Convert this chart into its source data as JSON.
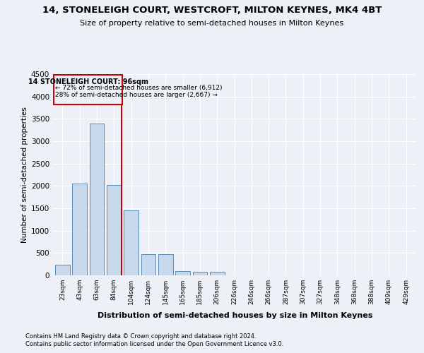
{
  "title1": "14, STONELEIGH COURT, WESTCROFT, MILTON KEYNES, MK4 4BT",
  "title2": "Size of property relative to semi-detached houses in Milton Keynes",
  "xlabel": "Distribution of semi-detached houses by size in Milton Keynes",
  "ylabel": "Number of semi-detached properties",
  "footer1": "Contains HM Land Registry data © Crown copyright and database right 2024.",
  "footer2": "Contains public sector information licensed under the Open Government Licence v3.0.",
  "annotation_title": "14 STONELEIGH COURT: 96sqm",
  "annotation_line1": "← 72% of semi-detached houses are smaller (6,912)",
  "annotation_line2": "28% of semi-detached houses are larger (2,667) →",
  "bar_color": "#c8d8ec",
  "bar_edge_color": "#5b8db8",
  "vline_color": "#cc0000",
  "categories": [
    "23sqm",
    "43sqm",
    "63sqm",
    "84sqm",
    "104sqm",
    "124sqm",
    "145sqm",
    "165sqm",
    "185sqm",
    "206sqm",
    "226sqm",
    "246sqm",
    "266sqm",
    "287sqm",
    "307sqm",
    "327sqm",
    "348sqm",
    "368sqm",
    "388sqm",
    "409sqm",
    "429sqm"
  ],
  "values": [
    230,
    2050,
    3400,
    2020,
    1460,
    470,
    470,
    100,
    75,
    75,
    0,
    0,
    0,
    0,
    0,
    0,
    0,
    0,
    0,
    0,
    0
  ],
  "ylim": [
    0,
    4500
  ],
  "yticks": [
    0,
    500,
    1000,
    1500,
    2000,
    2500,
    3000,
    3500,
    4000,
    4500
  ],
  "vline_position": 3.43,
  "background_color": "#edf1f7",
  "grid_color": "#ffffff"
}
